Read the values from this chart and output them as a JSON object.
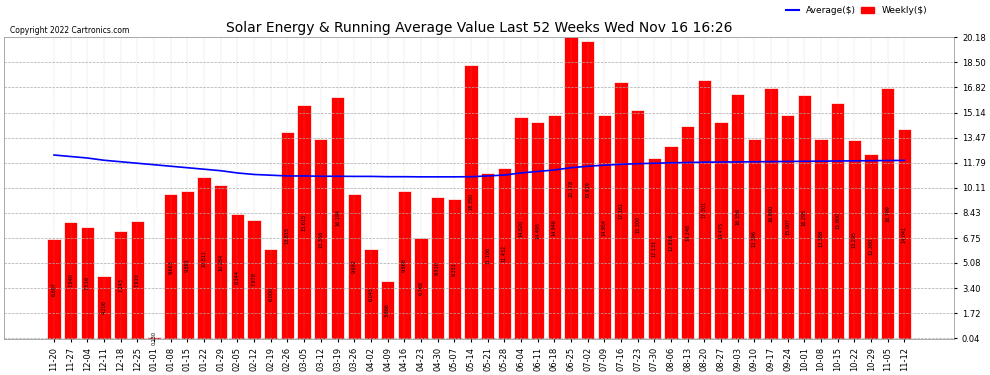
{
  "title": "Solar Energy & Running Average Value Last 52 Weeks Wed Nov 16 16:26",
  "copyright": "Copyright 2022 Cartronics.com",
  "legend_average": "Average($)",
  "legend_weekly": "Weekly($)",
  "ylabel_right": "",
  "yticks": [
    0.04,
    1.72,
    3.4,
    5.08,
    6.75,
    8.43,
    10.11,
    11.79,
    13.47,
    15.14,
    16.82,
    18.5,
    20.18
  ],
  "bar_color": "#ff0000",
  "bar_edge_color": "#ffffff",
  "avg_line_color": "#0000ff",
  "background_color": "#ffffff",
  "grid_color": "#aaaaaa",
  "categories": [
    "11-20",
    "11-27",
    "12-04",
    "12-11",
    "12-18",
    "12-25",
    "01-01",
    "01-08",
    "01-15",
    "01-22",
    "01-29",
    "02-05",
    "02-12",
    "02-19",
    "02-26",
    "03-05",
    "03-12",
    "03-19",
    "03-26",
    "04-02",
    "04-09",
    "04-16",
    "04-23",
    "04-30",
    "05-07",
    "05-14",
    "05-21",
    "05-28",
    "06-04",
    "06-11",
    "06-18",
    "06-25",
    "07-02",
    "07-09",
    "07-16",
    "07-23",
    "07-30",
    "08-06",
    "08-13",
    "08-20",
    "08-27",
    "09-03",
    "09-10",
    "09-17",
    "09-24",
    "10-01",
    "10-08",
    "10-15",
    "10-22",
    "10-29",
    "11-05",
    "11-12"
  ],
  "weekly_values": [
    6.697,
    7.84,
    7.516,
    4.206,
    7.243,
    7.91,
    0.13,
    9.663,
    9.891,
    10.811,
    10.284,
    8.344,
    7.978,
    6.0,
    13.815,
    15.615,
    13.356,
    16.194,
    9.692,
    6.045,
    3.866,
    9.866,
    6.768,
    9.51,
    9.351,
    18.35,
    11.106,
    11.432,
    14.82,
    14.495,
    14.946,
    20.178,
    19.919,
    14.954,
    17.161,
    15.3,
    12.131,
    12.918,
    14.248,
    17.301,
    14.475,
    16.356,
    13.396,
    16.8,
    15.007,
    16.295,
    13.388,
    15.8,
    13.295,
    12.38,
    16.799,
    14.041
  ],
  "avg_values": [
    12.3,
    12.2,
    12.1,
    11.95,
    11.85,
    11.75,
    11.65,
    11.55,
    11.45,
    11.35,
    11.25,
    11.1,
    11.0,
    10.95,
    10.9,
    10.9,
    10.88,
    10.88,
    10.87,
    10.87,
    10.85,
    10.85,
    10.84,
    10.84,
    10.84,
    10.85,
    10.9,
    10.96,
    11.1,
    11.2,
    11.3,
    11.45,
    11.55,
    11.62,
    11.68,
    11.72,
    11.75,
    11.78,
    11.8,
    11.82,
    11.83,
    11.84,
    11.85,
    11.86,
    11.87,
    11.88,
    11.89,
    11.9,
    11.91,
    11.92,
    11.93,
    11.94
  ]
}
